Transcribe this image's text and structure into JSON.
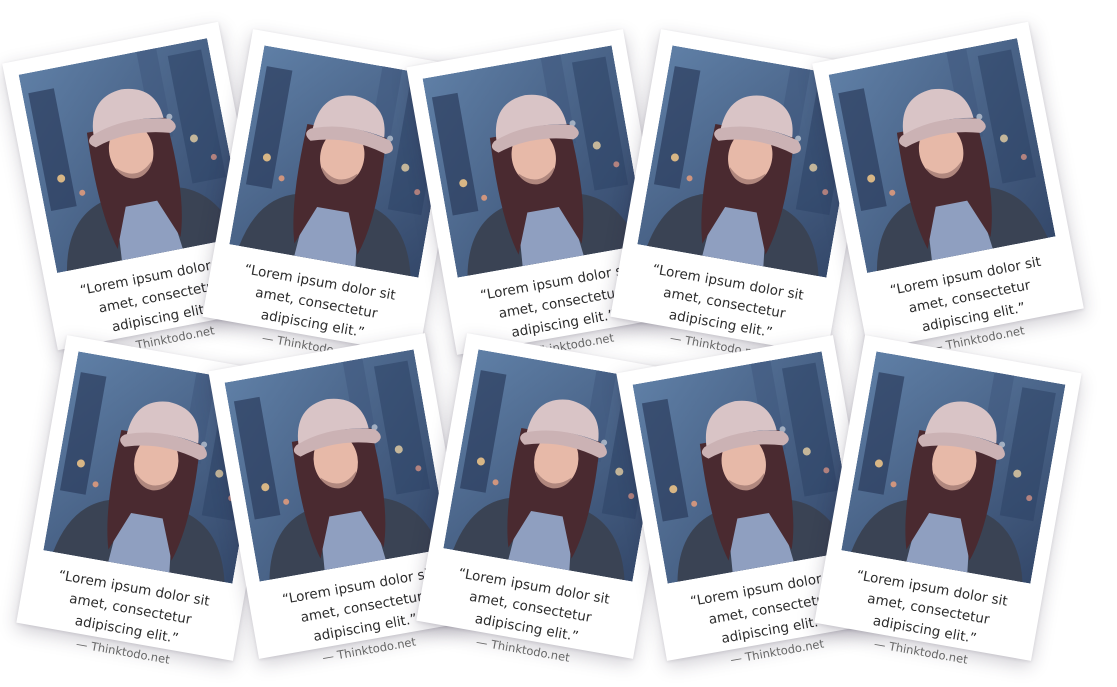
{
  "colors": {
    "background": "#ffffff",
    "card": "#ffffff",
    "quote_text": "#2c2c2c",
    "credit_text": "#666666",
    "photo_sky": "#5f7fa6",
    "photo_city": "#34486a",
    "photo_cap": "#d9c4c6",
    "photo_hair": "#4a2a30",
    "photo_sweater": "#8f9fc0",
    "photo_jacket": "#3a4354"
  },
  "cards": [
    {
      "image_icon": "woman-in-cap-photo",
      "quote": "“Lorem ipsum dolor sit amet, consectetur adipiscing elit.”",
      "credit": "— Thinktodo.net"
    },
    {
      "image_icon": "woman-in-cap-photo",
      "quote": "“Lorem ipsum dolor sit amet, consectetur adipiscing elit.”",
      "credit": "— Thinktodo.net"
    },
    {
      "image_icon": "woman-in-cap-photo",
      "quote": "“Lorem ipsum dolor sit amet, consectetur adipiscing elit.”",
      "credit": "— Thinktodo.net"
    },
    {
      "image_icon": "woman-in-cap-photo",
      "quote": "“Lorem ipsum dolor sit amet, consectetur adipiscing elit.”",
      "credit": "— Thinktodo.net"
    },
    {
      "image_icon": "woman-in-cap-photo",
      "quote": "“Lorem ipsum dolor sit amet, consectetur adipiscing elit.”",
      "credit": "— Thinktodo.net"
    },
    {
      "image_icon": "woman-in-cap-photo",
      "quote": "“Lorem ipsum dolor sit amet, consectetur adipiscing elit.”",
      "credit": "— Thinktodo.net"
    },
    {
      "image_icon": "woman-in-cap-photo",
      "quote": "“Lorem ipsum dolor sit amet, consectetur adipiscing elit.”",
      "credit": "— Thinktodo.net"
    },
    {
      "image_icon": "woman-in-cap-photo",
      "quote": "“Lorem ipsum dolor sit amet, consectetur adipiscing elit.”",
      "credit": "— Thinktodo.net"
    },
    {
      "image_icon": "woman-in-cap-photo",
      "quote": "“Lorem ipsum dolor sit amet, consectetur adipiscing elit.”",
      "credit": "— Thinktodo.net"
    },
    {
      "image_icon": "woman-in-cap-photo",
      "quote": "“Lorem ipsum dolor sit amet, consectetur adipiscing elit.”",
      "credit": "— Thinktodo.net"
    }
  ]
}
